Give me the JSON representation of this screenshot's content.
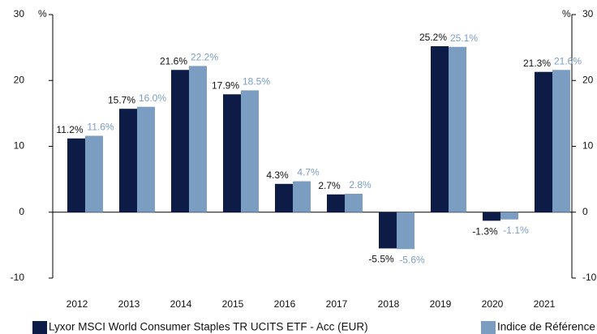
{
  "chart_data": {
    "type": "bar",
    "categories": [
      "2012",
      "2013",
      "2014",
      "2015",
      "2016",
      "2017",
      "2018",
      "2019",
      "2020",
      "2021"
    ],
    "series": [
      {
        "name": "Lyxor MSCI World Consumer Staples TR UCITS ETF - Acc (EUR)",
        "color": "#0c1c47",
        "values": [
          11.2,
          15.7,
          21.6,
          17.9,
          4.3,
          2.7,
          -5.5,
          25.2,
          -1.3,
          21.3
        ],
        "value_labels": [
          "11.2%",
          "15.7%",
          "21.6%",
          "17.9%",
          "4.3%",
          "2.7%",
          "-5.5%",
          "25.2%",
          "-1.3%",
          "21.3%"
        ],
        "label_color": "#111111"
      },
      {
        "name": "Indice de Référence",
        "color": "#7b9dc2",
        "values": [
          11.6,
          16.0,
          22.2,
          18.5,
          4.7,
          2.8,
          -5.6,
          25.1,
          -1.1,
          21.6
        ],
        "value_labels": [
          "11.6%",
          "16.0%",
          "22.2%",
          "18.5%",
          "4.7%",
          "2.8%",
          "-5.6%",
          "25.1%",
          "-1.1%",
          "21.6%"
        ],
        "label_color": "#7b9dc2"
      }
    ],
    "y_unit": "%",
    "y2_unit": "%",
    "ylim": [
      -10,
      30
    ],
    "yticks": [
      -10,
      0,
      10,
      20,
      30
    ],
    "y2lim": [
      -10,
      30
    ],
    "y2ticks": [
      -10,
      0,
      10,
      20,
      30
    ]
  }
}
